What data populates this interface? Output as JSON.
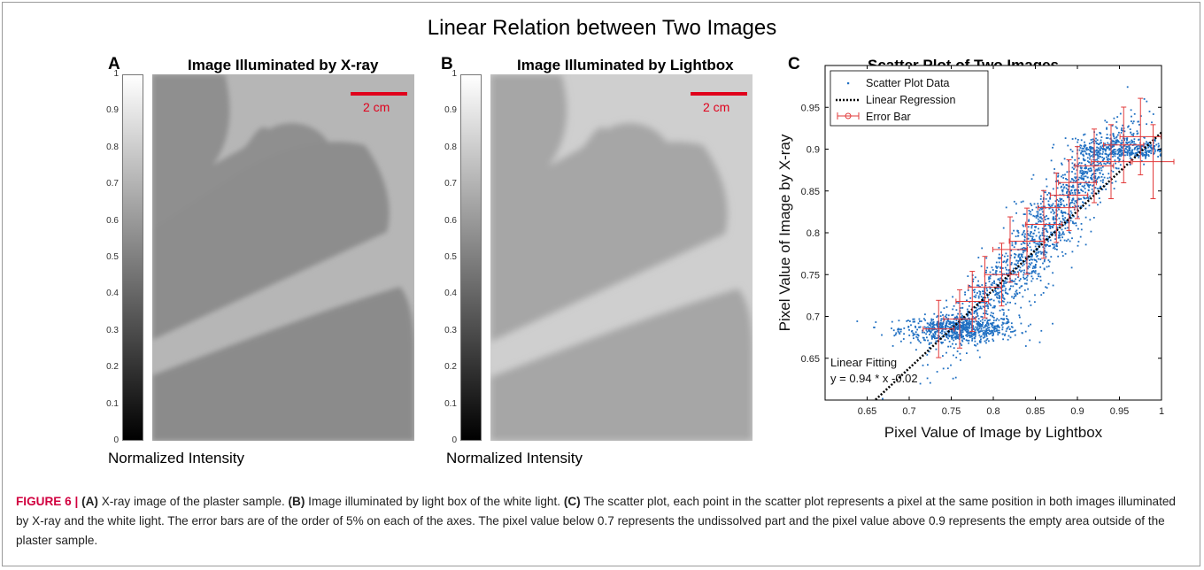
{
  "figure": {
    "main_title": "Linear Relation between Two Images",
    "panels": [
      {
        "letter": "A",
        "title": "Image Illuminated by X-ray",
        "scale_label": "2 cm",
        "colorbar_label": "Normalized Intensity"
      },
      {
        "letter": "B",
        "title": "Image Illuminated by Lightbox",
        "scale_label": "2 cm",
        "colorbar_label": "Normalized Intensity"
      },
      {
        "letter": "C",
        "title": "Scatter Plot of Two Images"
      }
    ],
    "colorbar_ticks": [
      "1",
      "0.9",
      "0.8",
      "0.7",
      "0.6",
      "0.5",
      "0.4",
      "0.3",
      "0.2",
      "0.1",
      "0"
    ]
  },
  "caption": {
    "figure_label": "FIGURE 6 |",
    "a_label": "(A)",
    "a_text": " X-ray image of the plaster sample. ",
    "b_label": "(B)",
    "b_text": " Image illuminated by light box of the white light. ",
    "c_label": "(C)",
    "c_text": " The scatter plot, each point in the scatter plot represents a pixel at the same position in both images illuminated by X-ray and the white light. The error bars are of the order of 5% on each of the axes. The pixel value below 0.7 represents the undissolved part and the pixel value above 0.9 represents the empty area outside of the plaster sample."
  },
  "chart_data": {
    "type": "scatter",
    "title": "Scatter Plot of Two Images",
    "xlabel": "Pixel Value of Image by Lightbox",
    "ylabel": "Pixel Value of Image by X-ray",
    "xlim": [
      0.6,
      1.0
    ],
    "ylim": [
      0.6,
      1.0
    ],
    "xticks": [
      0.65,
      0.7,
      0.75,
      0.8,
      0.85,
      0.9,
      0.95,
      1
    ],
    "yticks": [
      0.65,
      0.7,
      0.75,
      0.8,
      0.85,
      0.9,
      0.95
    ],
    "xtick_labels": [
      "0.65",
      "0.7",
      "0.75",
      "0.8",
      "0.85",
      "0.9",
      "0.95",
      "1"
    ],
    "ytick_labels": [
      "0.65",
      "0.7",
      "0.75",
      "0.8",
      "0.85",
      "0.9",
      "0.95"
    ],
    "legend": {
      "position": "top-left",
      "entries": [
        "Scatter Plot Data",
        "Linear Regression",
        "Error Bar"
      ]
    },
    "regression": {
      "slope": 0.94,
      "intercept": -0.02
    },
    "annotation": [
      "Linear Fitting",
      "y = 0.94 * x -0.02"
    ],
    "clusters": [
      {
        "cx": 0.76,
        "cy": 0.685,
        "sx": 0.035,
        "sy": 0.008
      },
      {
        "cx": 0.8,
        "cy": 0.73,
        "sx": 0.035,
        "sy": 0.02
      },
      {
        "cx": 0.86,
        "cy": 0.8,
        "sx": 0.03,
        "sy": 0.03
      },
      {
        "cx": 0.92,
        "cy": 0.88,
        "sx": 0.025,
        "sy": 0.02
      },
      {
        "cx": 0.96,
        "cy": 0.9,
        "sx": 0.03,
        "sy": 0.006
      }
    ],
    "error_bars": [
      {
        "x": 0.735,
        "y": 0.685
      },
      {
        "x": 0.76,
        "y": 0.697
      },
      {
        "x": 0.775,
        "y": 0.718
      },
      {
        "x": 0.79,
        "y": 0.735
      },
      {
        "x": 0.81,
        "y": 0.75
      },
      {
        "x": 0.82,
        "y": 0.78
      },
      {
        "x": 0.84,
        "y": 0.79
      },
      {
        "x": 0.86,
        "y": 0.81
      },
      {
        "x": 0.875,
        "y": 0.83
      },
      {
        "x": 0.89,
        "y": 0.845
      },
      {
        "x": 0.9,
        "y": 0.86
      },
      {
        "x": 0.92,
        "y": 0.88
      },
      {
        "x": 0.94,
        "y": 0.885
      },
      {
        "x": 0.955,
        "y": 0.905
      },
      {
        "x": 0.975,
        "y": 0.915
      },
      {
        "x": 0.99,
        "y": 0.885
      }
    ],
    "colors": {
      "points": "#1f6fc2",
      "regression": "#000000",
      "error_bar": "#e23a3a",
      "scale_bar": "#e0001b"
    }
  }
}
